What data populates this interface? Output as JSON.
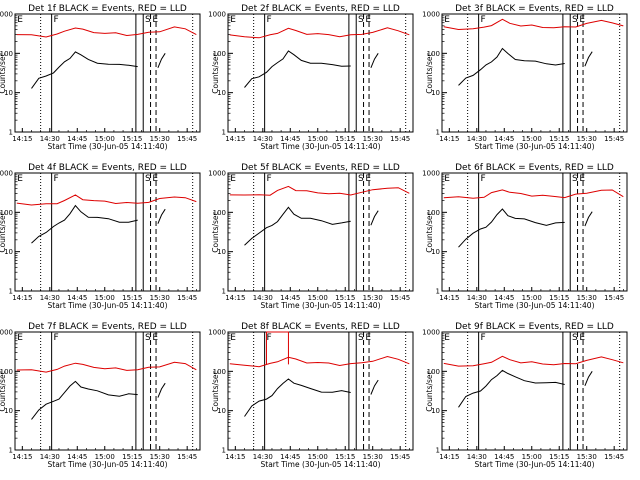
{
  "chart_data": {
    "type": "line",
    "y_scale": "log",
    "ylim": [
      1,
      1000
    ],
    "xlim": [
      "14:11",
      "15:52"
    ],
    "grid": false,
    "ylabel": "Counts/sec",
    "xlabel": "Start Time (30-Jun-05 14:11:40)",
    "x_tick_labels": [
      "14:15",
      "14:30",
      "14:45",
      "15:00",
      "15:15",
      "15:30",
      "15:45"
    ],
    "y_tick_labels": [
      "1",
      "10",
      "100",
      "1000"
    ],
    "series_colors": {
      "events": "#000000",
      "lld": "#dd0000"
    },
    "panels": [
      {
        "title": "Det 1f BLACK = Events, RED = LLD",
        "markers": [
          "E",
          "F",
          "S",
          "E"
        ]
      },
      {
        "title": "Det 2f BLACK = Events, RED = LLD",
        "markers": [
          "E",
          "F",
          "S",
          "E"
        ]
      },
      {
        "title": "Det 3f BLACK = Events, RED = LLD",
        "markers": [
          "E",
          "F",
          "S",
          "E"
        ]
      },
      {
        "title": "Det 4f BLACK = Events, RED = LLD",
        "markers": [
          "E",
          "F",
          "S",
          "E"
        ]
      },
      {
        "title": "Det 5f BLACK = Events, RED = LLD",
        "markers": [
          "E",
          "F",
          "S",
          "E"
        ]
      },
      {
        "title": "Det 6f BLACK = Events, RED = LLD",
        "markers": [
          "E",
          "F",
          "S",
          "E"
        ]
      },
      {
        "title": "Det 7f BLACK = Events, RED = LLD",
        "markers": [
          "E",
          "F",
          "S",
          "E"
        ]
      },
      {
        "title": "Det 8f BLACK = Events, RED = LLD",
        "markers": [
          "E",
          "F",
          "S",
          "E"
        ]
      },
      {
        "title": "Det 9f BLACK = Events, RED = LLD",
        "markers": [
          "E",
          "F",
          "S",
          "E"
        ]
      }
    ],
    "lld_base": [
      300,
      280,
      450,
      170,
      290,
      250,
      110,
      150,
      150
    ],
    "events_base": [
      50,
      50,
      55,
      60,
      55,
      52,
      25,
      30,
      50
    ],
    "events_points": [
      [
        "14:20",
        18
      ],
      [
        "14:24",
        30
      ],
      [
        "14:28",
        38
      ],
      [
        "14:32",
        48
      ],
      [
        "14:35",
        60
      ],
      [
        "14:38",
        80
      ],
      [
        "14:41",
        110
      ],
      [
        "14:44",
        160
      ],
      [
        "14:47",
        120
      ],
      [
        "14:51",
        95
      ],
      [
        "14:56",
        85
      ],
      [
        "15:02",
        75
      ],
      [
        "15:08",
        68
      ],
      [
        "15:13",
        70
      ],
      [
        "15:18",
        70
      ]
    ],
    "lld_points": [
      [
        "14:12",
        1.0
      ],
      [
        "14:20",
        0.95
      ],
      [
        "14:28",
        0.92
      ],
      [
        "14:34",
        1.0
      ],
      [
        "14:38",
        1.2
      ],
      [
        "14:44",
        1.55
      ],
      [
        "14:48",
        1.3
      ],
      [
        "14:54",
        1.15
      ],
      [
        "15:00",
        1.1
      ],
      [
        "15:06",
        1.05
      ],
      [
        "15:12",
        1.0
      ],
      [
        "15:18",
        1.0
      ],
      [
        "15:24",
        1.1
      ],
      [
        "15:30",
        1.25
      ],
      [
        "15:38",
        1.5
      ],
      [
        "15:44",
        1.4
      ],
      [
        "15:50",
        1.05
      ]
    ],
    "vlines": {
      "dotted": [
        "14:25",
        "15:48"
      ],
      "solid": [
        "14:31",
        "15:17",
        "15:21"
      ],
      "dashed": [
        "15:25",
        "15:28"
      ]
    },
    "spike_panel": 8,
    "spike": {
      "from": "14:32",
      "to": "14:44",
      "value": 1000
    }
  }
}
